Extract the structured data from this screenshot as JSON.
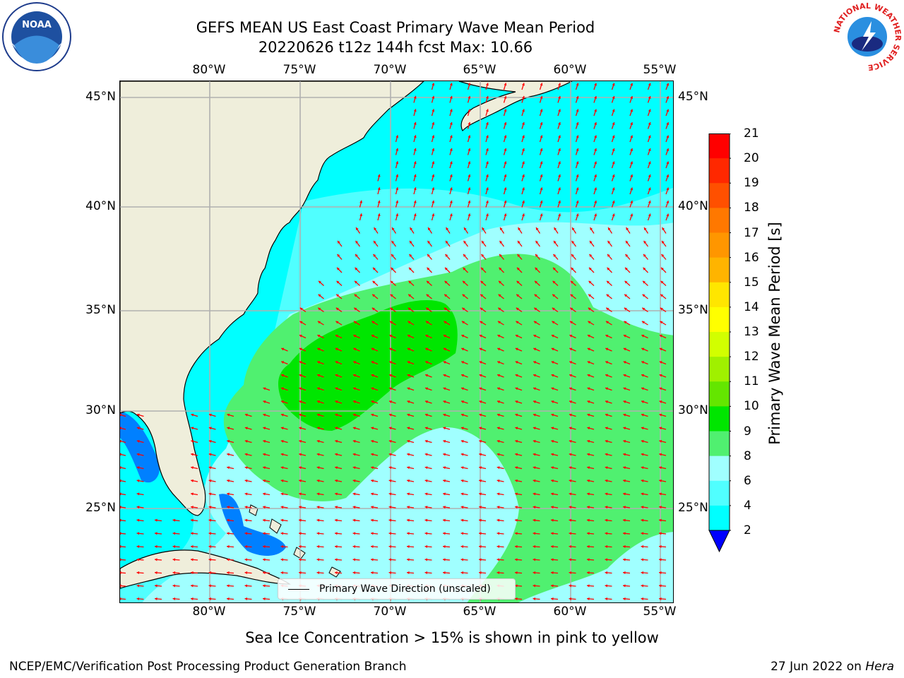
{
  "header": {
    "title_line1": "GEFS MEAN US East Coast Primary Wave Mean Period",
    "title_line2": "20220626 t12z 144h fcst   Max: 10.66"
  },
  "axes": {
    "lon_labels": [
      "80°W",
      "75°W",
      "70°W",
      "65°W",
      "60°W",
      "55°W"
    ],
    "lat_labels": [
      "45°N",
      "40°N",
      "35°N",
      "30°N",
      "25°N"
    ],
    "lon_range": [
      -85,
      -54.3
    ],
    "lat_range": [
      20.5,
      46
    ]
  },
  "map_legend": {
    "label": "Primary Wave Direction (unscaled)"
  },
  "colorbar": {
    "label": "Primary Wave Mean Period [s]",
    "ticks": [
      "21",
      "20",
      "19",
      "18",
      "17",
      "16",
      "15",
      "14",
      "13",
      "12",
      "11",
      "10",
      "9",
      "8",
      "6",
      "4",
      "2"
    ],
    "colors": [
      "#ff0000",
      "#ff2800",
      "#ff5000",
      "#ff7800",
      "#ff9600",
      "#ffb400",
      "#ffe600",
      "#ffff00",
      "#d2ff00",
      "#a0f000",
      "#64e600",
      "#00e600",
      "#50f070",
      "#a0ffff",
      "#50ffff",
      "#00ffff",
      "#0080ff"
    ],
    "extend_color": "#0000ff"
  },
  "notes": {
    "ice": "Sea Ice Concentration > 15% is shown in pink to yellow",
    "credit": "NCEP/EMC/Verification Post Processing Product Generation Branch",
    "date": "27 Jun 2022 on ",
    "machine": "Hera"
  },
  "logos": {
    "noaa": "NOAA",
    "nws": "NATIONAL WEATHER SERVICE"
  },
  "colors": {
    "land": "#efeedb",
    "arrow": "#ff0000",
    "grid": "#b0b0b0"
  }
}
